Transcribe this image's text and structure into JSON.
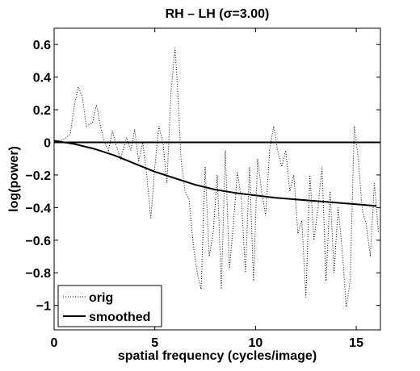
{
  "chart_data": {
    "type": "line",
    "title": "RH – LH (σ=3.00)",
    "xlabel": "spatial frequency (cycles/image)",
    "ylabel": "log(power)",
    "xlim": [
      0,
      16.2
    ],
    "ylim": [
      -1.15,
      0.7
    ],
    "xticks": [
      0,
      5,
      10,
      15
    ],
    "xtick_labels": [
      "0",
      "5",
      "10",
      "15"
    ],
    "yticks": [
      0.6,
      0.4,
      0.2,
      0,
      -0.2,
      -0.4,
      -0.6,
      -0.8,
      -1
    ],
    "ytick_labels": [
      "0.6",
      "0.4",
      "0.2",
      "0",
      "−0.2",
      "−0.4",
      "−0.6",
      "−0.8",
      "−1"
    ],
    "grid": false,
    "legend": {
      "position": "bottom-left",
      "entries": [
        {
          "label": "orig",
          "style": "dotted"
        },
        {
          "label": "smoothed",
          "style": "solid"
        }
      ]
    },
    "reference_line": {
      "y": 0
    },
    "series": [
      {
        "name": "orig",
        "style": "dotted",
        "x": [
          0,
          0.5,
          0.8,
          1.0,
          1.2,
          1.4,
          1.6,
          1.9,
          2.1,
          2.3,
          2.5,
          2.7,
          2.9,
          3.1,
          3.3,
          3.6,
          3.8,
          4.0,
          4.2,
          4.4,
          4.6,
          4.8,
          5.0,
          5.2,
          5.4,
          5.6,
          5.8,
          6.0,
          6.1,
          6.3,
          6.5,
          6.7,
          6.9,
          7.1,
          7.3,
          7.5,
          7.7,
          7.9,
          8.1,
          8.3,
          8.5,
          8.7,
          8.9,
          9.1,
          9.3,
          9.5,
          9.7,
          9.9,
          10.1,
          10.3,
          10.5,
          10.7,
          10.9,
          11.1,
          11.3,
          11.5,
          11.7,
          11.9,
          12.1,
          12.3,
          12.5,
          12.7,
          12.9,
          13.1,
          13.3,
          13.5,
          13.7,
          13.9,
          14.1,
          14.3,
          14.5,
          14.7,
          14.9,
          15.1,
          15.3,
          15.5,
          15.7,
          15.9,
          16.1
        ],
        "y": [
          0.0,
          0.02,
          0.05,
          0.22,
          0.34,
          0.28,
          0.1,
          0.12,
          0.23,
          0.1,
          0.0,
          -0.05,
          0.07,
          -0.03,
          -0.1,
          0.03,
          -0.05,
          0.08,
          -0.12,
          0.0,
          -0.2,
          -0.47,
          -0.15,
          0.1,
          0.0,
          -0.25,
          0.3,
          0.58,
          0.4,
          -0.1,
          -0.3,
          -0.35,
          -0.62,
          -0.8,
          -0.9,
          -0.15,
          -0.7,
          -0.55,
          -0.2,
          -0.9,
          -0.05,
          -0.78,
          -0.5,
          -0.18,
          -0.35,
          -0.8,
          -0.15,
          -0.85,
          -0.1,
          -0.3,
          -0.45,
          -0.05,
          0.1,
          -0.05,
          -0.15,
          -0.05,
          -0.3,
          -0.2,
          -0.56,
          -0.48,
          -0.95,
          -0.2,
          -0.6,
          -0.4,
          -0.15,
          -0.85,
          -0.3,
          -0.8,
          -0.4,
          -0.65,
          -1.01,
          -0.85,
          0.1,
          -0.1,
          -0.42,
          -0.5,
          -0.7,
          -0.25,
          -0.55
        ]
      },
      {
        "name": "smoothed",
        "style": "solid",
        "x": [
          0,
          1,
          2,
          3,
          4,
          5,
          6,
          7,
          8,
          9,
          10,
          11,
          12,
          13,
          14,
          15,
          16
        ],
        "y": [
          0.01,
          -0.01,
          -0.04,
          -0.08,
          -0.13,
          -0.18,
          -0.22,
          -0.26,
          -0.29,
          -0.31,
          -0.325,
          -0.34,
          -0.35,
          -0.36,
          -0.37,
          -0.38,
          -0.39
        ]
      }
    ]
  }
}
